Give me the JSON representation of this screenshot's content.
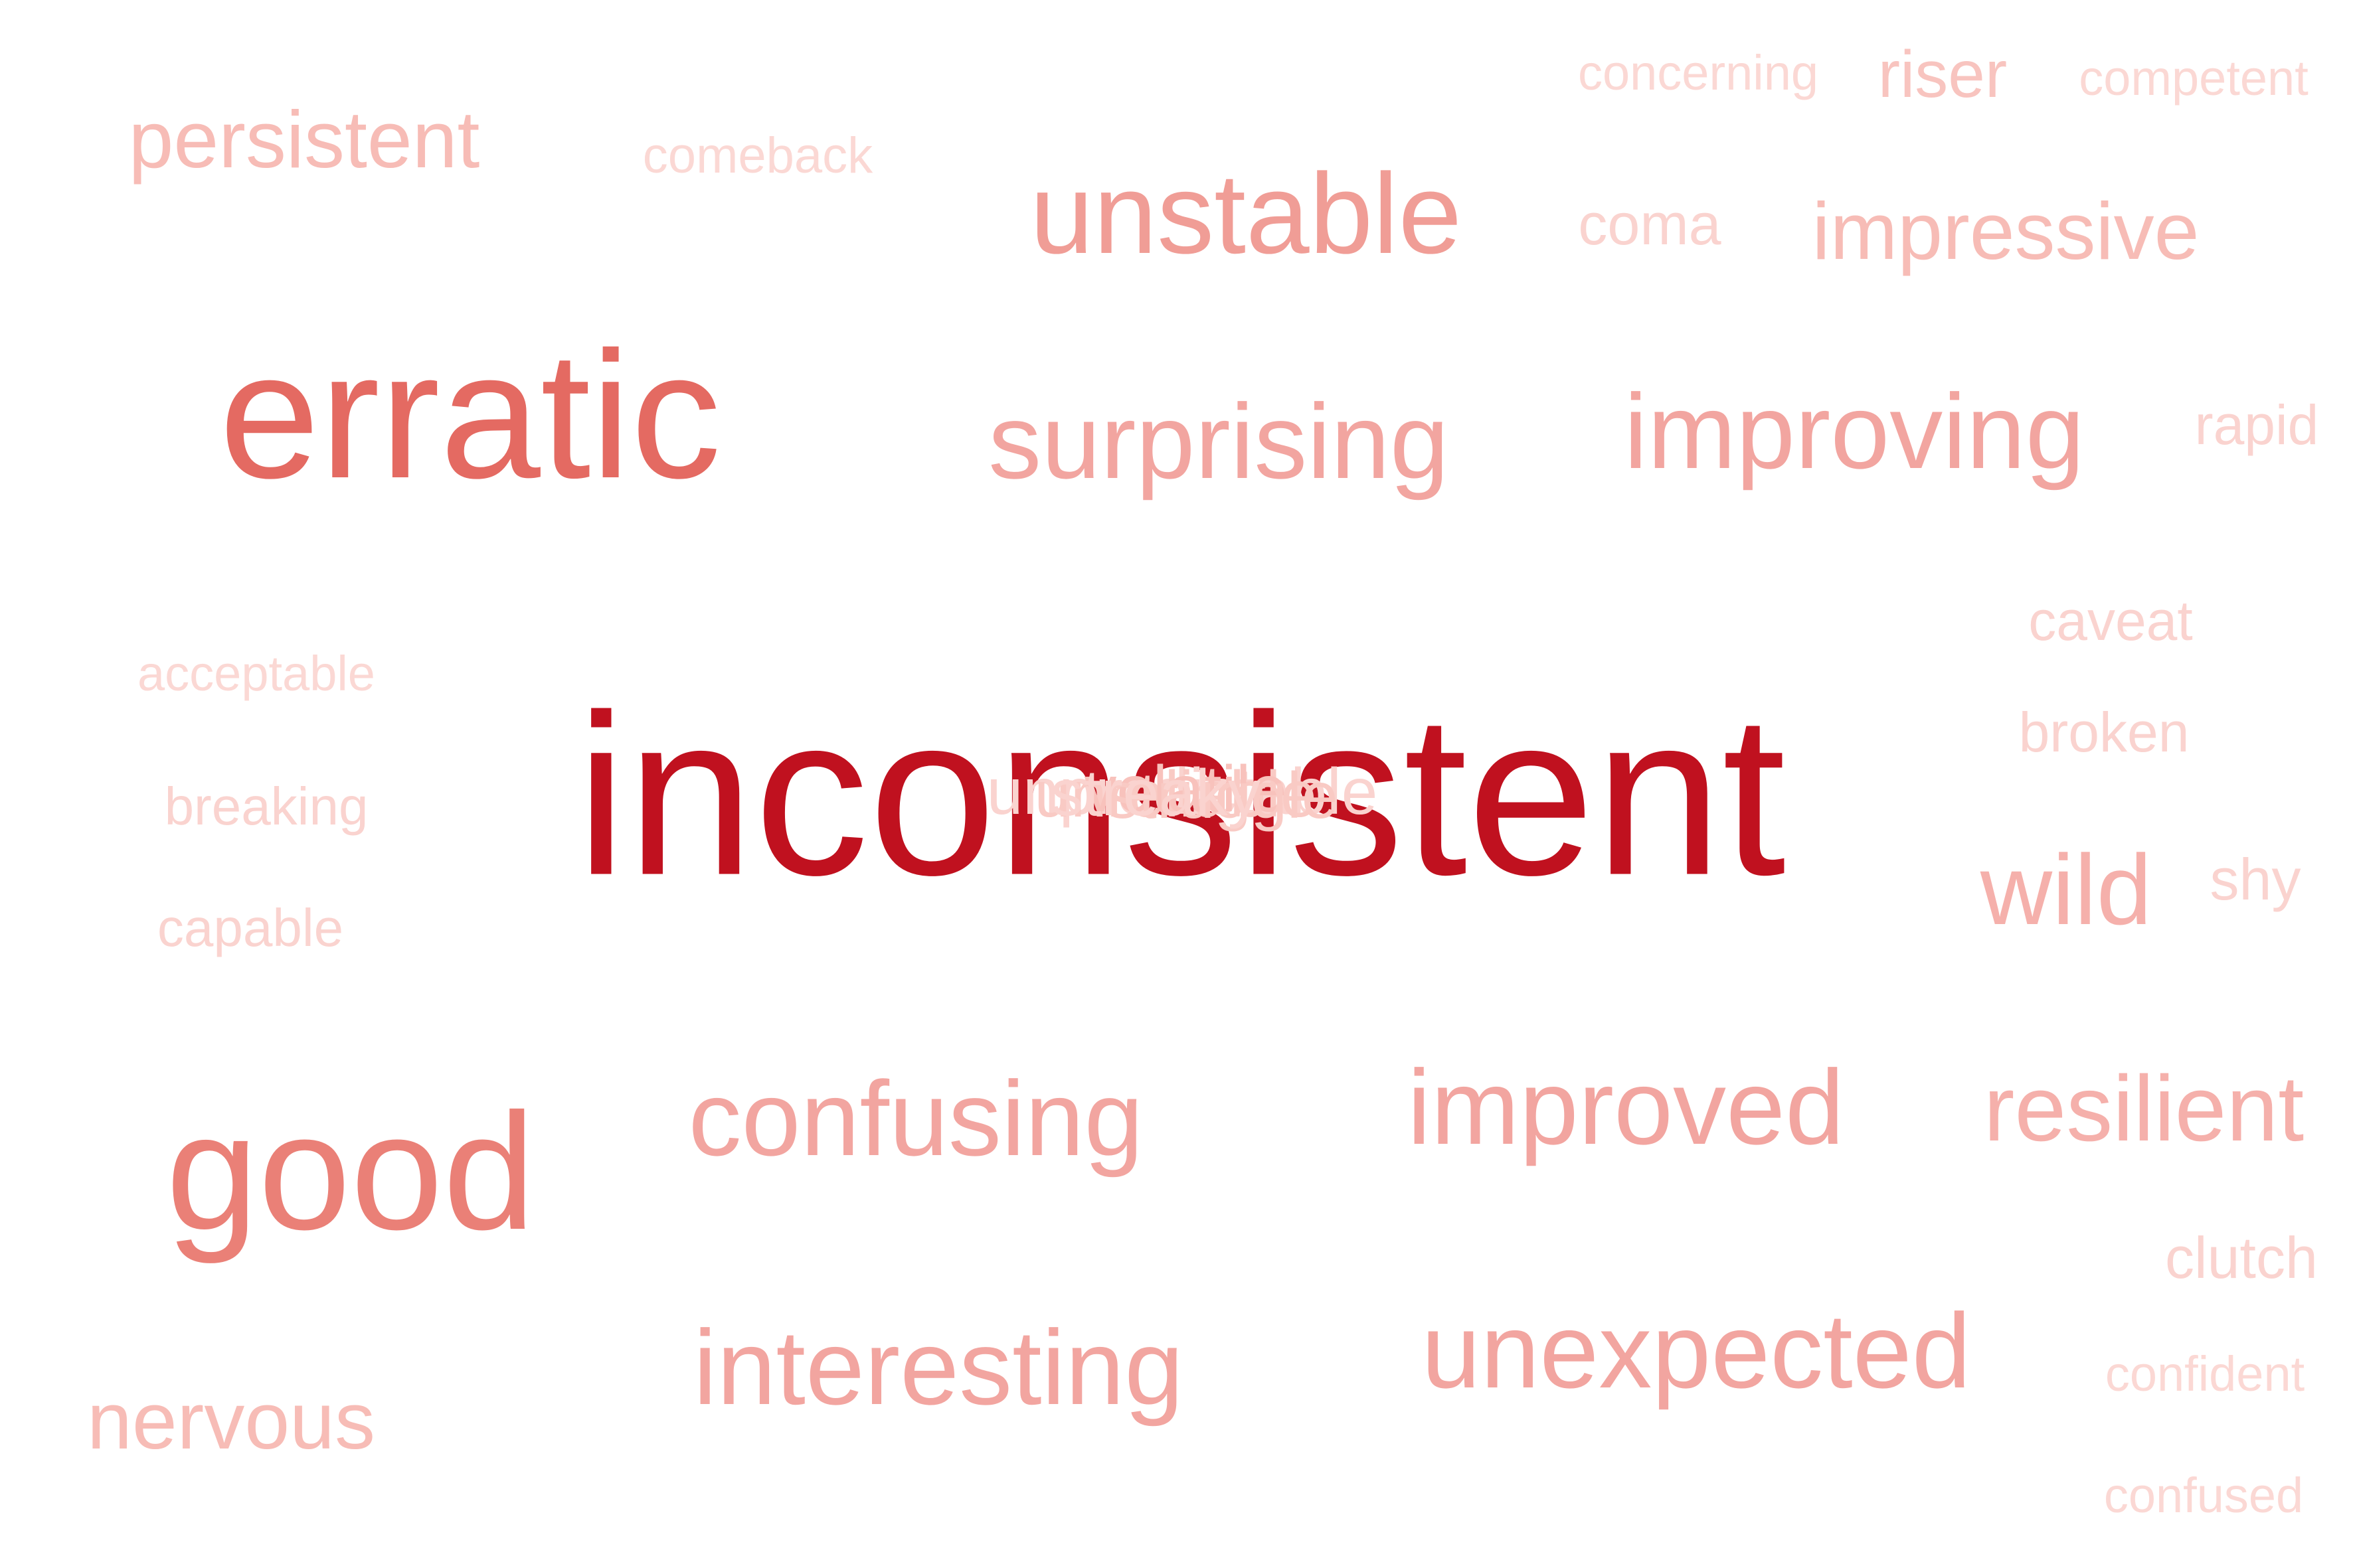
{
  "words": [
    {
      "text": "inconsistent",
      "color": "#c0111f",
      "size": 345,
      "weight": 400
    },
    {
      "text": "erratic",
      "color": "#e46a62",
      "size": 272,
      "weight": 400
    },
    {
      "text": "good",
      "color": "#ea8077",
      "size": 250,
      "weight": 400
    },
    {
      "text": "unstable",
      "color": "#f09d96",
      "size": 172,
      "weight": 400
    },
    {
      "text": "surprising",
      "color": "#f2a5a0",
      "size": 160,
      "weight": 400
    },
    {
      "text": "improving",
      "color": "#f2a5a0",
      "size": 160,
      "weight": 400
    },
    {
      "text": "confusing",
      "color": "#f2a5a0",
      "size": 160,
      "weight": 400
    },
    {
      "text": "improved",
      "color": "#f2a5a0",
      "size": 160,
      "weight": 400
    },
    {
      "text": "interesting",
      "color": "#f2a5a0",
      "size": 160,
      "weight": 400
    },
    {
      "text": "unexpected",
      "color": "#f2a5a0",
      "size": 160,
      "weight": 400
    },
    {
      "text": "resilient",
      "color": "#f5b0ab",
      "size": 140,
      "weight": 400
    },
    {
      "text": "wild",
      "color": "#f5b0ab",
      "size": 150,
      "weight": 400
    },
    {
      "text": "persistent",
      "color": "#f7bcb6",
      "size": 122,
      "weight": 400
    },
    {
      "text": "impressive",
      "color": "#f7bcb6",
      "size": 122,
      "weight": 400
    },
    {
      "text": "nervous",
      "color": "#f7bcb6",
      "size": 122,
      "weight": 400
    },
    {
      "text": "riser",
      "color": "#f8c4bf",
      "size": 100,
      "weight": 400
    },
    {
      "text": "coma",
      "color": "#fad3cf",
      "size": 88,
      "weight": 400
    },
    {
      "text": "shy",
      "color": "#fad3cf",
      "size": 88,
      "weight": 400
    },
    {
      "text": "clutch",
      "color": "#fad3cf",
      "size": 88,
      "weight": 400
    },
    {
      "text": "rapid",
      "color": "#fad3cf",
      "size": 84,
      "weight": 400
    },
    {
      "text": "caveat",
      "color": "#fad3cf",
      "size": 84,
      "weight": 400
    },
    {
      "text": "broken",
      "color": "#fad3cf",
      "size": 84,
      "weight": 400
    },
    {
      "text": "breaking",
      "color": "#fad3cf",
      "size": 80,
      "weight": 400
    },
    {
      "text": "capable",
      "color": "#fad3cf",
      "size": 80,
      "weight": 400
    },
    {
      "text": "comeback",
      "color": "#fbd8d4",
      "size": 76,
      "weight": 400
    },
    {
      "text": "concerning",
      "color": "#fbd8d4",
      "size": 74,
      "weight": 400
    },
    {
      "text": "competent",
      "color": "#fbd8d4",
      "size": 74,
      "weight": 400
    },
    {
      "text": "acceptable",
      "color": "#fbd8d4",
      "size": 74,
      "weight": 400
    },
    {
      "text": "confident",
      "color": "#fbd8d4",
      "size": 74,
      "weight": 400
    },
    {
      "text": "confused",
      "color": "#fbd8d4",
      "size": 74,
      "weight": 400
    }
  ],
  "overlap_words": [
    {
      "text": "unpredictable",
      "color": "#fad3cf",
      "size": 98
    },
    {
      "text": "unreliable",
      "color": "#f9cac4",
      "size": 98
    },
    {
      "text": "volatile",
      "color": "#f8c2bc",
      "size": 98
    },
    {
      "text": "struggle",
      "color": "#f9cac4",
      "size": 98
    },
    {
      "text": "streaky",
      "color": "#fad3cf",
      "size": 98
    }
  ]
}
